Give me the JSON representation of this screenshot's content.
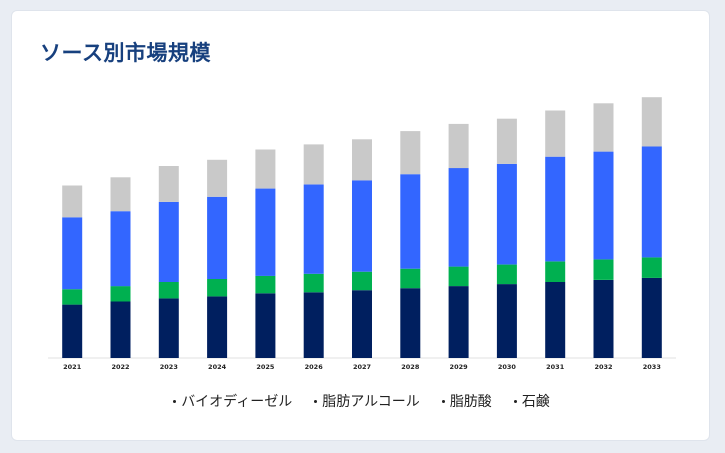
{
  "title": "ソース別市場規模",
  "chart_data": {
    "type": "bar",
    "stacked": true,
    "title": "ソース別市場規模",
    "xlabel": "",
    "ylabel": "",
    "grid": false,
    "legend_position": "bottom",
    "categories": [
      "2021",
      "2022",
      "2023",
      "2024",
      "2025",
      "2026",
      "2027",
      "2028",
      "2029",
      "2030",
      "2031",
      "2032",
      "2033"
    ],
    "ylim": [
      0,
      260
    ],
    "series": [
      {
        "name": "石鹸",
        "color": "#001f5f",
        "values": [
          52,
          55,
          58,
          60,
          63,
          64,
          66,
          68,
          70,
          72,
          74,
          76,
          78
        ]
      },
      {
        "name": "脂肪酸",
        "color": "#00b050",
        "values": [
          15,
          15,
          16,
          17,
          17,
          18,
          18,
          19,
          19,
          19,
          20,
          20,
          20
        ]
      },
      {
        "name": "脂肪アルコール",
        "color": "#3366ff",
        "values": [
          70,
          73,
          78,
          80,
          85,
          87,
          89,
          92,
          96,
          98,
          102,
          105,
          108
        ]
      },
      {
        "name": "バイオディーゼル",
        "color": "#c9c9c9",
        "values": [
          31,
          33,
          35,
          36,
          38,
          39,
          40,
          42,
          43,
          44,
          45,
          47,
          48
        ]
      }
    ]
  },
  "legend": [
    {
      "label": "バイオディーゼル",
      "color": "#c9c9c9"
    },
    {
      "label": "脂肪アルコール",
      "color": "#3366ff"
    },
    {
      "label": "脂肪酸",
      "color": "#00b050"
    },
    {
      "label": "石鹸",
      "color": "#001f5f"
    }
  ]
}
